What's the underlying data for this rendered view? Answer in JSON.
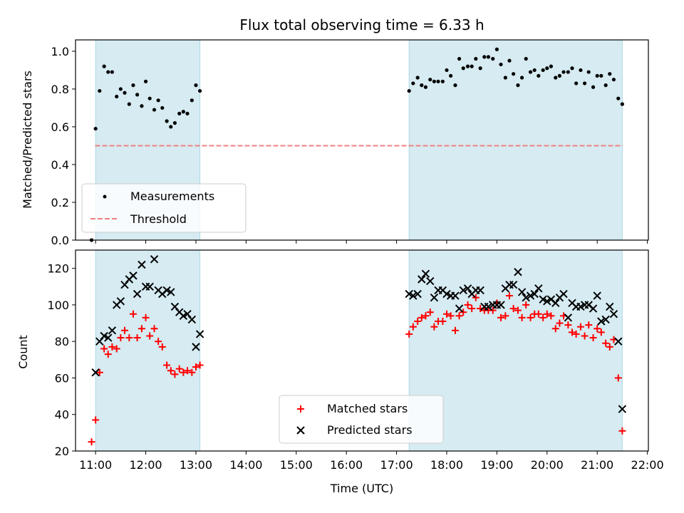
{
  "chart_data": [
    {
      "type": "scatter",
      "title": "Flux total observing time = 6.33 h",
      "xlabel": "",
      "ylabel": "Matched/Predicted stars",
      "xlim": [
        10.6,
        22.02
      ],
      "ylim": [
        0.0,
        1.06
      ],
      "yticks": [
        0.0,
        0.2,
        0.4,
        0.6,
        0.8,
        1.0
      ],
      "ytick_labels": [
        "0.0",
        "0.2",
        "0.4",
        "0.6",
        "0.8",
        "1.0"
      ],
      "shaded_intervals": [
        [
          11.0,
          13.08
        ],
        [
          17.25,
          21.5
        ]
      ],
      "legend": {
        "position": "lower-left",
        "entries": [
          "Measurements",
          "Threshold"
        ]
      },
      "threshold": {
        "name": "Threshold",
        "y": 0.5,
        "x_range": [
          10.99,
          21.51
        ],
        "color": "#f08080"
      },
      "series": [
        {
          "name": "Measurements",
          "color": "#000000",
          "x": [
            10.92,
            11.0,
            11.08,
            11.17,
            11.25,
            11.33,
            11.42,
            11.5,
            11.58,
            11.67,
            11.75,
            11.83,
            11.92,
            12.0,
            12.08,
            12.17,
            12.25,
            12.33,
            12.42,
            12.5,
            12.58,
            12.67,
            12.75,
            12.83,
            12.92,
            13.0,
            13.08,
            17.25,
            17.33,
            17.42,
            17.5,
            17.58,
            17.67,
            17.75,
            17.83,
            17.92,
            18.0,
            18.08,
            18.17,
            18.25,
            18.33,
            18.42,
            18.5,
            18.58,
            18.67,
            18.75,
            18.83,
            18.92,
            19.0,
            19.08,
            19.17,
            19.25,
            19.33,
            19.42,
            19.5,
            19.58,
            19.67,
            19.75,
            19.83,
            19.92,
            20.0,
            20.08,
            20.17,
            20.25,
            20.33,
            20.42,
            20.5,
            20.58,
            20.67,
            20.75,
            20.83,
            20.92,
            21.0,
            21.08,
            21.17,
            21.25,
            21.33,
            21.42,
            21.5
          ],
          "y": [
            0.0,
            0.59,
            0.79,
            0.92,
            0.89,
            0.89,
            0.76,
            0.8,
            0.78,
            0.72,
            0.82,
            0.77,
            0.71,
            0.84,
            0.75,
            0.69,
            0.74,
            0.7,
            0.63,
            0.6,
            0.62,
            0.67,
            0.68,
            0.67,
            0.74,
            0.82,
            0.79,
            0.79,
            0.83,
            0.86,
            0.82,
            0.81,
            0.85,
            0.84,
            0.84,
            0.84,
            0.9,
            0.87,
            0.82,
            0.96,
            0.91,
            0.92,
            0.92,
            0.96,
            0.91,
            0.97,
            0.97,
            0.96,
            1.01,
            0.93,
            0.86,
            0.95,
            0.88,
            0.82,
            0.86,
            0.96,
            0.89,
            0.9,
            0.87,
            0.9,
            0.91,
            0.92,
            0.86,
            0.87,
            0.89,
            0.89,
            0.91,
            0.83,
            0.9,
            0.83,
            0.89,
            0.81,
            0.87,
            0.87,
            0.82,
            0.88,
            0.85,
            0.75,
            0.72
          ]
        }
      ]
    },
    {
      "type": "scatter",
      "title": "",
      "xlabel": "Time (UTC)",
      "ylabel": "Count",
      "xlim": [
        10.6,
        22.02
      ],
      "ylim": [
        20,
        130
      ],
      "yticks": [
        20,
        40,
        60,
        80,
        100,
        120
      ],
      "ytick_labels": [
        "20",
        "40",
        "60",
        "80",
        "100",
        "120"
      ],
      "xticks": [
        11,
        12,
        13,
        14,
        15,
        16,
        17,
        18,
        19,
        20,
        21,
        22
      ],
      "xtick_labels": [
        "11:00",
        "12:00",
        "13:00",
        "14:00",
        "15:00",
        "16:00",
        "17:00",
        "18:00",
        "19:00",
        "20:00",
        "21:00",
        "22:00"
      ],
      "shaded_intervals": [
        [
          11.0,
          13.08
        ],
        [
          17.25,
          21.5
        ]
      ],
      "legend": {
        "position": "lower-center",
        "entries": [
          "Matched stars",
          "Predicted stars"
        ]
      },
      "series": [
        {
          "name": "Matched stars",
          "color": "#ff0000",
          "marker": "plus",
          "x": [
            10.92,
            11.0,
            11.08,
            11.17,
            11.25,
            11.33,
            11.42,
            11.5,
            11.58,
            11.67,
            11.75,
            11.83,
            11.92,
            12.0,
            12.08,
            12.17,
            12.25,
            12.33,
            12.42,
            12.5,
            12.58,
            12.67,
            12.75,
            12.83,
            12.92,
            13.0,
            13.08,
            17.25,
            17.33,
            17.42,
            17.5,
            17.58,
            17.67,
            17.75,
            17.83,
            17.92,
            18.0,
            18.08,
            18.17,
            18.25,
            18.33,
            18.42,
            18.5,
            18.58,
            18.67,
            18.75,
            18.83,
            18.92,
            19.0,
            19.08,
            19.17,
            19.25,
            19.33,
            19.42,
            19.5,
            19.58,
            19.67,
            19.75,
            19.83,
            19.92,
            20.0,
            20.08,
            20.17,
            20.25,
            20.33,
            20.42,
            20.5,
            20.58,
            20.67,
            20.75,
            20.83,
            20.92,
            21.0,
            21.08,
            21.17,
            21.25,
            21.33,
            21.42,
            21.5
          ],
          "y": [
            25,
            37,
            63,
            76,
            73,
            77,
            76,
            82,
            86,
            82,
            95,
            82,
            87,
            93,
            83,
            87,
            80,
            77,
            67,
            64,
            62,
            65,
            63,
            64,
            63,
            66,
            67,
            84,
            88,
            91,
            93,
            94,
            96,
            88,
            91,
            91,
            95,
            94,
            86,
            94,
            96,
            100,
            98,
            104,
            98,
            97,
            97,
            97,
            101,
            93,
            94,
            105,
            98,
            97,
            93,
            100,
            93,
            95,
            95,
            93,
            95,
            94,
            87,
            90,
            94,
            89,
            85,
            84,
            88,
            83,
            89,
            82,
            87,
            85,
            79,
            77,
            81,
            60,
            31
          ]
        },
        {
          "name": "Predicted stars",
          "color": "#000000",
          "marker": "x",
          "x": [
            11.0,
            11.08,
            11.17,
            11.25,
            11.33,
            11.42,
            11.5,
            11.58,
            11.67,
            11.75,
            11.83,
            11.92,
            12.0,
            12.08,
            12.17,
            12.25,
            12.33,
            12.42,
            12.5,
            12.58,
            12.67,
            12.75,
            12.83,
            12.92,
            13.0,
            13.08,
            17.25,
            17.33,
            17.42,
            17.5,
            17.58,
            17.67,
            17.75,
            17.83,
            17.92,
            18.0,
            18.08,
            18.17,
            18.25,
            18.33,
            18.42,
            18.5,
            18.58,
            18.67,
            18.75,
            18.83,
            18.92,
            19.0,
            19.08,
            19.17,
            19.25,
            19.33,
            19.42,
            19.5,
            19.58,
            19.67,
            19.75,
            19.83,
            19.92,
            20.0,
            20.08,
            20.17,
            20.25,
            20.33,
            20.42,
            20.5,
            20.58,
            20.67,
            20.75,
            20.83,
            20.92,
            21.0,
            21.08,
            21.17,
            21.25,
            21.33,
            21.42,
            21.5
          ],
          "y": [
            63,
            80,
            83,
            82,
            86,
            100,
            102,
            111,
            114,
            116,
            106,
            122,
            110,
            110,
            125,
            108,
            106,
            108,
            107,
            99,
            96,
            94,
            95,
            92,
            77,
            84,
            106,
            105,
            106,
            114,
            117,
            113,
            104,
            108,
            108,
            106,
            105,
            105,
            98,
            108,
            109,
            106,
            108,
            108,
            99,
            99,
            100,
            100,
            100,
            109,
            111,
            111,
            118,
            107,
            104,
            105,
            106,
            109,
            103,
            102,
            103,
            101,
            104,
            106,
            93,
            101,
            99,
            99,
            100,
            100,
            98,
            105,
            91,
            92,
            99,
            95,
            80,
            43
          ]
        }
      ]
    }
  ]
}
